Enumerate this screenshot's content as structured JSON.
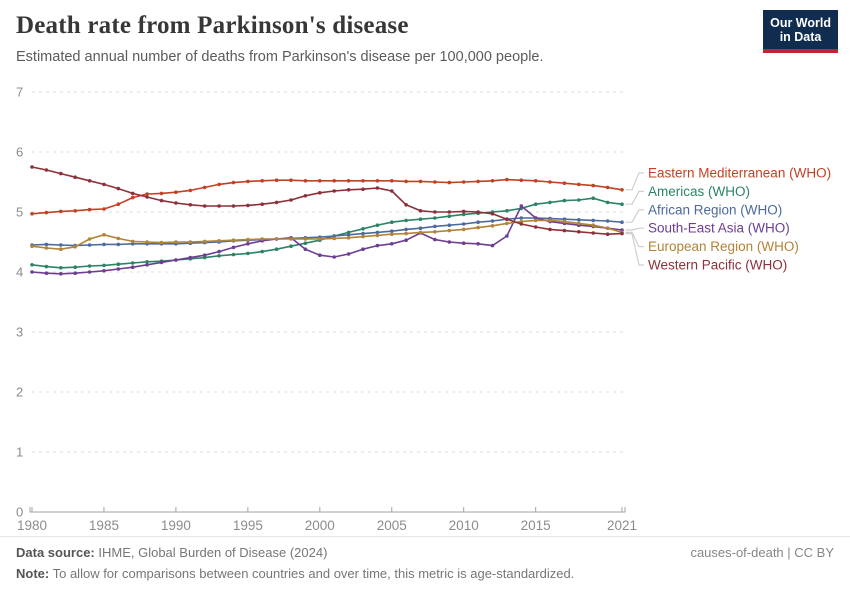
{
  "logo": {
    "line1": "Our World",
    "line2": "in Data"
  },
  "footer": {
    "data_source_label": "Data source:",
    "data_source": "IHME, Global Burden of Disease (2024)",
    "note_label": "Note:",
    "note": "To allow for comparisons between countries and over time, this metric is age-standardized.",
    "attribution": "causes-of-death | CC BY"
  },
  "style_colors": {
    "grid": "#dcdcdc",
    "axis": "#a3a3a3",
    "tick_label": "#8c8c8c",
    "connector": "#cfcfcf",
    "logo_bg": "#102d50",
    "logo_red": "#c9203a"
  },
  "chart_data": {
    "type": "line",
    "title": "Death rate from Parkinson's disease",
    "subtitle": "Estimated annual number of deaths from Parkinson's disease per 100,000 people.",
    "ylim": [
      0,
      7
    ],
    "yticks": [
      0,
      1,
      2,
      3,
      4,
      5,
      6,
      7
    ],
    "xticks": [
      1980,
      1985,
      1990,
      1995,
      2000,
      2005,
      2010,
      2015,
      2021
    ],
    "grid": "dashed-horizontal",
    "legend_position": "right",
    "x": [
      1980,
      1981,
      1982,
      1983,
      1984,
      1985,
      1986,
      1987,
      1988,
      1989,
      1990,
      1991,
      1992,
      1993,
      1994,
      1995,
      1996,
      1997,
      1998,
      1999,
      2000,
      2001,
      2002,
      2003,
      2004,
      2005,
      2006,
      2007,
      2008,
      2009,
      2010,
      2011,
      2012,
      2013,
      2014,
      2015,
      2016,
      2017,
      2018,
      2019,
      2020,
      2021
    ],
    "series": [
      {
        "name": "Eastern Mediterranean (WHO)",
        "color": "#c34123",
        "values": [
          4.97,
          4.99,
          5.01,
          5.02,
          5.04,
          5.05,
          5.13,
          5.24,
          5.3,
          5.31,
          5.33,
          5.36,
          5.41,
          5.46,
          5.49,
          5.51,
          5.52,
          5.53,
          5.53,
          5.52,
          5.52,
          5.52,
          5.52,
          5.52,
          5.52,
          5.52,
          5.51,
          5.51,
          5.5,
          5.49,
          5.5,
          5.51,
          5.52,
          5.54,
          5.53,
          5.52,
          5.5,
          5.48,
          5.46,
          5.44,
          5.41,
          5.37
        ]
      },
      {
        "name": "Americas (WHO)",
        "color": "#2c8465",
        "values": [
          4.12,
          4.09,
          4.07,
          4.08,
          4.1,
          4.11,
          4.13,
          4.15,
          4.17,
          4.18,
          4.2,
          4.22,
          4.24,
          4.27,
          4.29,
          4.31,
          4.34,
          4.38,
          4.43,
          4.48,
          4.53,
          4.6,
          4.66,
          4.72,
          4.78,
          4.83,
          4.86,
          4.88,
          4.9,
          4.93,
          4.96,
          4.98,
          5.0,
          5.02,
          5.06,
          5.13,
          5.16,
          5.19,
          5.2,
          5.23,
          5.16,
          5.13
        ]
      },
      {
        "name": "African Region (WHO)",
        "color": "#4c6a9c",
        "values": [
          4.45,
          4.46,
          4.45,
          4.44,
          4.45,
          4.46,
          4.46,
          4.47,
          4.47,
          4.47,
          4.47,
          4.48,
          4.49,
          4.5,
          4.52,
          4.53,
          4.54,
          4.55,
          4.56,
          4.57,
          4.58,
          4.6,
          4.62,
          4.64,
          4.66,
          4.68,
          4.71,
          4.73,
          4.76,
          4.78,
          4.8,
          4.83,
          4.85,
          4.88,
          4.9,
          4.9,
          4.89,
          4.88,
          4.87,
          4.86,
          4.85,
          4.83
        ]
      },
      {
        "name": "South-East Asia (WHO)",
        "color": "#6d3e91",
        "values": [
          4.0,
          3.98,
          3.97,
          3.98,
          4.0,
          4.02,
          4.05,
          4.08,
          4.12,
          4.16,
          4.2,
          4.24,
          4.28,
          4.34,
          4.41,
          4.47,
          4.52,
          4.55,
          4.57,
          4.38,
          4.28,
          4.25,
          4.3,
          4.38,
          4.44,
          4.47,
          4.53,
          4.65,
          4.54,
          4.5,
          4.48,
          4.47,
          4.44,
          4.6,
          5.1,
          4.9,
          4.84,
          4.81,
          4.78,
          4.76,
          4.73,
          4.7
        ]
      },
      {
        "name": "European Region (WHO)",
        "color": "#b38336",
        "values": [
          4.43,
          4.4,
          4.38,
          4.42,
          4.55,
          4.62,
          4.56,
          4.51,
          4.5,
          4.49,
          4.5,
          4.5,
          4.51,
          4.52,
          4.53,
          4.54,
          4.55,
          4.55,
          4.55,
          4.55,
          4.55,
          4.56,
          4.57,
          4.59,
          4.61,
          4.63,
          4.64,
          4.66,
          4.67,
          4.69,
          4.71,
          4.74,
          4.77,
          4.81,
          4.84,
          4.86,
          4.86,
          4.84,
          4.81,
          4.78,
          4.73,
          4.66
        ]
      },
      {
        "name": "Western Pacific (WHO)",
        "color": "#8d3039",
        "values": [
          5.75,
          5.7,
          5.64,
          5.58,
          5.52,
          5.46,
          5.39,
          5.31,
          5.25,
          5.19,
          5.15,
          5.12,
          5.1,
          5.1,
          5.1,
          5.11,
          5.13,
          5.16,
          5.2,
          5.27,
          5.32,
          5.35,
          5.37,
          5.38,
          5.4,
          5.35,
          5.12,
          5.02,
          5.0,
          5.0,
          5.01,
          5.0,
          4.97,
          4.88,
          4.8,
          4.75,
          4.71,
          4.69,
          4.67,
          4.65,
          4.63,
          4.64
        ]
      }
    ]
  }
}
